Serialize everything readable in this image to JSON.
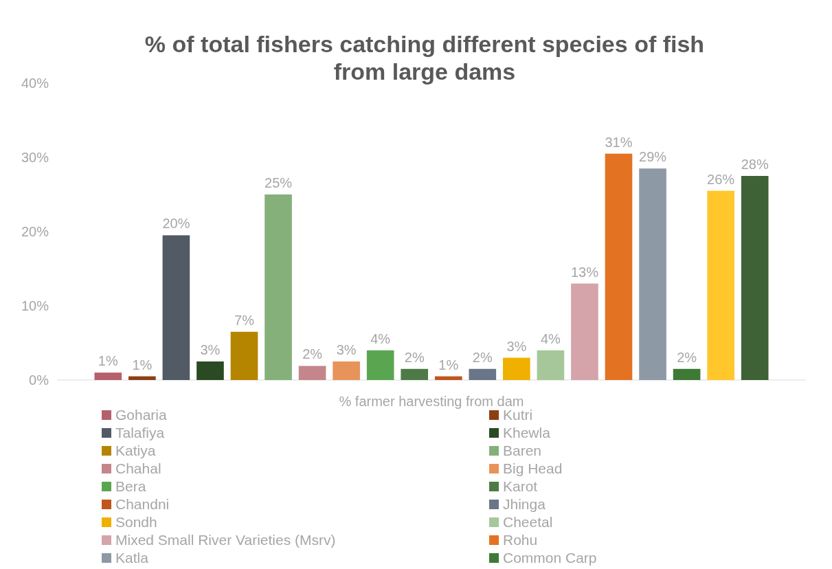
{
  "chart_data": {
    "type": "bar",
    "title": "% of total fishers catching different species of fish from large dams",
    "categories": [
      "% farmer harvesting from dam"
    ],
    "ylim": [
      0,
      40
    ],
    "yticks": [
      {
        "value": 0,
        "label": "0%"
      },
      {
        "value": 10,
        "label": "10%"
      },
      {
        "value": 20,
        "label": "20%"
      },
      {
        "value": 30,
        "label": "30%"
      },
      {
        "value": 40,
        "label": "40%"
      }
    ],
    "legend": "bottom",
    "series": [
      {
        "name": "Goharia",
        "color": "#b5606b",
        "values": [
          1.0
        ],
        "value_labels": [
          "1%"
        ]
      },
      {
        "name": "Kutri",
        "color": "#8c3f12",
        "values": [
          0.5
        ],
        "value_labels": [
          "1%"
        ]
      },
      {
        "name": "Talafiya",
        "color": "#525a66",
        "values": [
          19.5
        ],
        "value_labels": [
          "20%"
        ]
      },
      {
        "name": "Khewla",
        "color": "#2a4a24",
        "values": [
          2.5
        ],
        "value_labels": [
          "3%"
        ]
      },
      {
        "name": "Katiya",
        "color": "#b58500",
        "values": [
          6.5
        ],
        "value_labels": [
          "7%"
        ]
      },
      {
        "name": "Baren",
        "color": "#85b07a",
        "values": [
          25.0
        ],
        "value_labels": [
          "25%"
        ]
      },
      {
        "name": "Chahal",
        "color": "#c4868b",
        "values": [
          1.9
        ],
        "value_labels": [
          "2%"
        ]
      },
      {
        "name": "Big Head",
        "color": "#e8935a",
        "values": [
          2.5
        ],
        "value_labels": [
          "3%"
        ]
      },
      {
        "name": "Bera",
        "color": "#5aa650",
        "values": [
          4.0
        ],
        "value_labels": [
          "4%"
        ]
      },
      {
        "name": "Karot",
        "color": "#4e7a45",
        "values": [
          1.5
        ],
        "value_labels": [
          "2%"
        ]
      },
      {
        "name": "Chandni",
        "color": "#c0561a",
        "values": [
          0.5
        ],
        "value_labels": [
          "1%"
        ]
      },
      {
        "name": "Jhinga",
        "color": "#6b7588",
        "values": [
          1.5
        ],
        "value_labels": [
          "2%"
        ]
      },
      {
        "name": "Sondh",
        "color": "#f0b000",
        "values": [
          3.0
        ],
        "value_labels": [
          "3%"
        ]
      },
      {
        "name": "Cheetal",
        "color": "#a6c79a",
        "values": [
          4.0
        ],
        "value_labels": [
          "4%"
        ]
      },
      {
        "name": "Mixed Small River Varieties (Msrv)",
        "color": "#d4a4aa",
        "values": [
          13.0
        ],
        "value_labels": [
          "13%"
        ]
      },
      {
        "name": "Rohu",
        "color": "#e37322",
        "values": [
          30.5
        ],
        "value_labels": [
          "31%"
        ]
      },
      {
        "name": "Katla",
        "color": "#8e99a6",
        "values": [
          28.5
        ],
        "value_labels": [
          "29%"
        ]
      },
      {
        "name": "Common Carp",
        "color": "#3e7a35",
        "values": [
          1.5
        ],
        "value_labels": [
          "2%"
        ]
      },
      {
        "color": "#ffc72c",
        "values": [
          25.5
        ],
        "value_labels": [
          "26%"
        ]
      },
      {
        "color": "#3e6135",
        "values": [
          27.5
        ],
        "value_labels": [
          "28%"
        ]
      }
    ]
  }
}
